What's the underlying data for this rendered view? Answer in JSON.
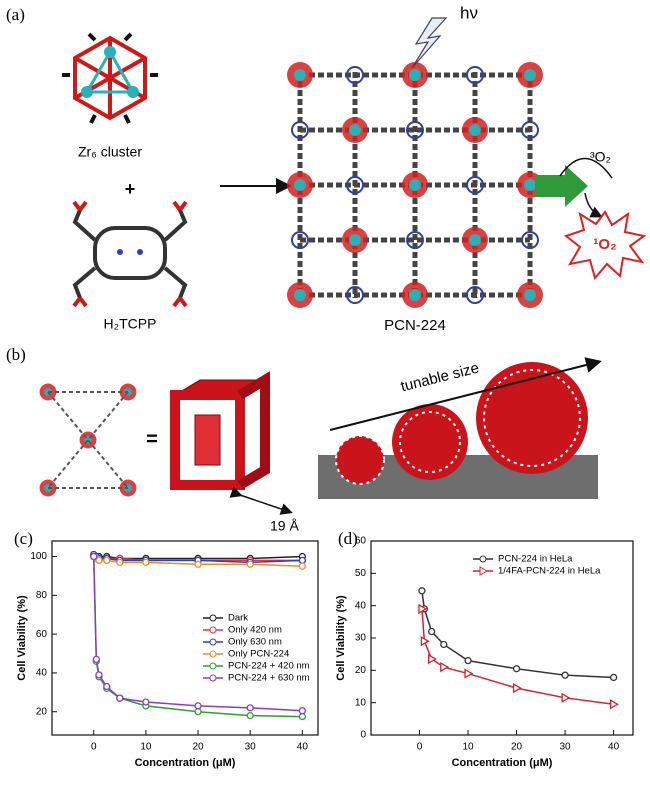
{
  "figure": {
    "panel_a": {
      "label": "(a)",
      "cluster": "Zr₆ cluster",
      "plus": "+",
      "linker": "H₂TCPP",
      "light": "hν",
      "mof": "PCN-224",
      "triplet": "³O₂",
      "singlet": "¹O₂"
    },
    "panel_b": {
      "label": "(b)",
      "equals": "=",
      "size_label": "tunable size",
      "pore": "19 Å"
    },
    "panel_c": {
      "label": "(c)"
    },
    "panel_d": {
      "label": "(d)"
    }
  },
  "chart_data": [
    {
      "type": "line",
      "xlabel": "Concentration (μM)",
      "ylabel": "Cell Viability (%)",
      "x": [
        0,
        0.5,
        1,
        2.5,
        5,
        10,
        20,
        30,
        40
      ],
      "xlim": [
        -8,
        43
      ],
      "ylim": [
        8,
        108
      ],
      "xticks": [
        0,
        10,
        20,
        30,
        40
      ],
      "yticks": [
        20,
        40,
        60,
        80,
        100
      ],
      "legend": "lower right",
      "series": [
        {
          "name": "Dark",
          "color": "#222222",
          "marker": "circle",
          "values": [
            101,
            100,
            100,
            100,
            99,
            99,
            99,
            99,
            100
          ]
        },
        {
          "name": "Only 420 nm",
          "color": "#e8323c",
          "marker": "circle",
          "values": [
            100,
            100,
            99,
            99,
            99,
            98,
            98,
            98,
            98
          ]
        },
        {
          "name": "Only 630 nm",
          "color": "#2d3fc8",
          "marker": "circle",
          "values": [
            101,
            100,
            99,
            99,
            98,
            98,
            98,
            97,
            98
          ]
        },
        {
          "name": "Only PCN-224",
          "color": "#f08c1e",
          "marker": "circle",
          "values": [
            100,
            99,
            98,
            98,
            97,
            97,
            96,
            96,
            95
          ]
        },
        {
          "name": "PCN-224 + 420 nm",
          "color": "#2ea02e",
          "marker": "circle",
          "values": [
            100,
            46,
            38,
            32,
            27,
            23,
            20,
            18,
            17.5
          ]
        },
        {
          "name": "PCN-224 + 630 nm",
          "color": "#8a3cc8",
          "marker": "circle",
          "values": [
            100,
            47,
            39,
            33,
            27,
            25,
            23,
            22,
            20.5
          ]
        }
      ]
    },
    {
      "type": "line",
      "xlabel": "Concentration (μM)",
      "ylabel": "Cell Viability (%)",
      "x": [
        0.5,
        1,
        2.5,
        5,
        10,
        20,
        30,
        40
      ],
      "xlim": [
        -10,
        44
      ],
      "ylim": [
        0,
        60
      ],
      "xticks": [
        0,
        10,
        20,
        30,
        40
      ],
      "yticks": [
        0,
        10,
        20,
        30,
        40,
        50,
        60
      ],
      "legend": "upper right",
      "series": [
        {
          "name": "PCN-224 in HeLa",
          "color": "#333333",
          "marker": "circle",
          "values": [
            44.6,
            39,
            32,
            28,
            23,
            20.5,
            18.5,
            17.8
          ]
        },
        {
          "name": "1/4FA-PCN-224 in HeLa",
          "color": "#d8202a",
          "marker": "triangle",
          "values": [
            39,
            29,
            23.5,
            21,
            19,
            14.5,
            11.5,
            9.5
          ]
        }
      ]
    }
  ]
}
